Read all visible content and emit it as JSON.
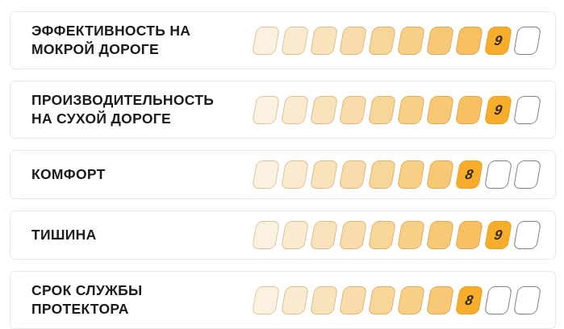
{
  "panel_title": "tyre-rating-panel",
  "scale": {
    "max": 10,
    "accent": "#F5AD2B",
    "filled_border": "rgba(176,120,40,0.38)",
    "empty_border": "#7F7F7F",
    "number_color": "#33291A",
    "ramp": [
      "#FBF1E1",
      "#FAEACF",
      "#F9E3BD",
      "#F9DCAB",
      "#F8D699",
      "#F8CF87",
      "#F7C875",
      "#F7C163",
      "#F6BB51",
      "#F6B43F"
    ]
  },
  "rows": [
    {
      "label": "ЭФФЕКТИВНОСТЬ НА МОКРОЙ ДОРОГЕ",
      "label_lines": [
        "ЭФФЕКТИВНОСТЬ НА",
        "МОКРОЙ ДОРОГЕ"
      ],
      "score": 9,
      "max": 10
    },
    {
      "label": "ПРОИЗВОДИТЕЛЬНОСТЬ НА СУХОЙ ДОРОГЕ",
      "label_lines": [
        "ПРОИЗВОДИТЕЛЬНОСТЬ",
        "НА СУХОЙ ДОРОГЕ"
      ],
      "score": 9,
      "max": 10
    },
    {
      "label": "КОМФОРТ",
      "label_lines": [
        "КОМФОРТ"
      ],
      "score": 8,
      "max": 10
    },
    {
      "label": "ТИШИНА",
      "label_lines": [
        "ТИШИНА"
      ],
      "score": 9,
      "max": 10
    },
    {
      "label": "СРОК СЛУЖБЫ ПРОТЕКТОРА",
      "label_lines": [
        "СРОК СЛУЖБЫ",
        "ПРОТЕКТОРА"
      ],
      "score": 8,
      "max": 10
    }
  ],
  "chart_data": {
    "type": "bar",
    "categories": [
      "ЭФФЕКТИВНОСТЬ НА МОКРОЙ ДОРОГЕ",
      "ПРОИЗВОДИТЕЛЬНОСТЬ НА СУХОЙ ДОРОГЕ",
      "КОМФОРТ",
      "ТИШИНА",
      "СРОК СЛУЖБЫ ПРОТЕКТОРА"
    ],
    "values": [
      9,
      9,
      8,
      9,
      8
    ],
    "title": "",
    "xlabel": "",
    "ylabel": "",
    "ylim": [
      0,
      10
    ],
    "grid": false,
    "legend": false,
    "orientation": "horizontal",
    "annotations": [
      "9",
      "9",
      "8",
      "9",
      "8"
    ]
  }
}
